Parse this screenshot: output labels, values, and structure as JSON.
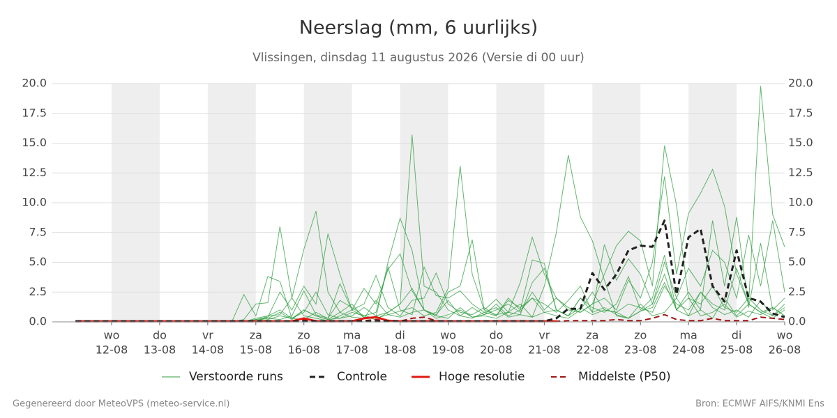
{
  "chart_data": {
    "type": "line",
    "title": "Neerslag (mm, 6 uurlijks)",
    "subtitle": "Vlissingen, dinsdag 11 augustus 2026 (Versie di 00 uur)",
    "x": [
      -18,
      -12,
      -6,
      0,
      6,
      12,
      18,
      24,
      30,
      36,
      42,
      48,
      54,
      60,
      66,
      72,
      78,
      84,
      90,
      96,
      102,
      108,
      114,
      120,
      126,
      132,
      138,
      144,
      150,
      156,
      162,
      168,
      174,
      180,
      186,
      192,
      198,
      204,
      210,
      216,
      222,
      228,
      234,
      240,
      246,
      252,
      258,
      264,
      270,
      276,
      282,
      288,
      294,
      300,
      306,
      312,
      318,
      324,
      330,
      336
    ],
    "xlim": [
      -29.6,
      336
    ],
    "xticks": [
      {
        "value": 0,
        "label": "12-08"
      },
      {
        "value": 24,
        "label": "13-08"
      },
      {
        "value": 48,
        "label": "14-08"
      },
      {
        "value": 72,
        "label": "15-08"
      },
      {
        "value": 96,
        "label": "16-08"
      },
      {
        "value": 120,
        "label": "17-08"
      },
      {
        "value": 144,
        "label": "18-08"
      },
      {
        "value": 168,
        "label": "19-08"
      },
      {
        "value": 192,
        "label": "20-08"
      },
      {
        "value": 216,
        "label": "21-08"
      },
      {
        "value": 240,
        "label": "22-08"
      },
      {
        "value": 264,
        "label": "23-08"
      },
      {
        "value": 288,
        "label": "24-08"
      },
      {
        "value": 312,
        "label": "25-08"
      },
      {
        "value": 336,
        "label": "26-08"
      }
    ],
    "weekdays": [
      "wo",
      "do",
      "vr",
      "za",
      "zo",
      "ma",
      "di",
      "wo",
      "do",
      "vr",
      "za",
      "zo",
      "ma",
      "di",
      "wo"
    ],
    "ylim": [
      0,
      20
    ],
    "yticks": [
      {
        "value": 0,
        "label": "0.0"
      },
      {
        "value": 2.5,
        "label": "2.5"
      },
      {
        "value": 5,
        "label": "5.0"
      },
      {
        "value": 7.5,
        "label": "7.5"
      },
      {
        "value": 10,
        "label": "10.0"
      },
      {
        "value": 12.5,
        "label": "12.5"
      },
      {
        "value": 15,
        "label": "15.0"
      },
      {
        "value": 17.5,
        "label": "17.5"
      },
      {
        "value": 20,
        "label": "20.0"
      }
    ],
    "grid": true,
    "ensemble": {
      "name": "Verstoorde runs",
      "color": "#2e9e3e",
      "members": [
        [
          0,
          0,
          0,
          0,
          0,
          0,
          0,
          0,
          0,
          0,
          0,
          0,
          0,
          0,
          2.3,
          0.5,
          3.8,
          3.4,
          0.3,
          1.0,
          0.5,
          0.2,
          0.8,
          1.5,
          0.3,
          0.4,
          5.0,
          8.7,
          6.0,
          1.0,
          0.5,
          0.3,
          1.2,
          0.4,
          0.6,
          1.5,
          0.5,
          1.0,
          2.0,
          0.8,
          0.5,
          0.3,
          1.0,
          2.5,
          1.0,
          0.8,
          0.3,
          1.5,
          0.5,
          0.8,
          2.0,
          0.5,
          1.0,
          0.3,
          2.0,
          0.5,
          1.5,
          0.8,
          0.3,
          1.0
        ],
        [
          0,
          0,
          0,
          0,
          0,
          0,
          0,
          0,
          0,
          0,
          0,
          0,
          0,
          0,
          0.2,
          1.5,
          1.6,
          8.0,
          2.0,
          0.5,
          0.3,
          0.1,
          0.5,
          1.0,
          0.4,
          0.2,
          0.8,
          1.5,
          15.7,
          3.0,
          2.5,
          1.0,
          0.5,
          0.3,
          0.8,
          1.2,
          0.4,
          0.6,
          3.3,
          4.5,
          1.0,
          0.5,
          2.0,
          0.8,
          1.2,
          0.6,
          0.3,
          0.9,
          1.5,
          4.0,
          1.0,
          0.5,
          2.5,
          1.2,
          0.6,
          1.0,
          0.4,
          1.8,
          0.5,
          1.2
        ],
        [
          0,
          0,
          0,
          0,
          0,
          0,
          0,
          0,
          0,
          0,
          0,
          0,
          0,
          0,
          0,
          0.3,
          0.5,
          0.6,
          2.0,
          6.1,
          9.3,
          2.5,
          0.8,
          0.4,
          0.3,
          1.8,
          0.6,
          0.9,
          1.2,
          0.5,
          0.8,
          2.8,
          13.1,
          4.0,
          1.0,
          0.6,
          0.8,
          1.5,
          0.4,
          3.0,
          7.5,
          14.0,
          8.8,
          6.8,
          3.5,
          0.5,
          0.3,
          0.9,
          1.2,
          3.3,
          1.0,
          2.0,
          0.5,
          0.8,
          1.5,
          0.4,
          0.9,
          0.6,
          1.2,
          0.5
        ],
        [
          0,
          0,
          0,
          0,
          0,
          0,
          0,
          0,
          0,
          0,
          0,
          0,
          0,
          0,
          0,
          0.2,
          0.4,
          2.5,
          1.0,
          3.0,
          1.5,
          7.4,
          4.0,
          1.0,
          2.8,
          1.5,
          4.4,
          5.7,
          2.6,
          1.0,
          0.5,
          2.5,
          3.0,
          6.9,
          1.0,
          1.9,
          0.8,
          3.3,
          7.1,
          4.0,
          2.0,
          1.0,
          0.8,
          1.5,
          4.0,
          6.4,
          7.6,
          6.8,
          3.0,
          14.8,
          9.8,
          2.0,
          1.5,
          3.0,
          1.2,
          0.8,
          2.0,
          1.0,
          0.5,
          1.5
        ],
        [
          0,
          0,
          0,
          0,
          0,
          0,
          0,
          0,
          0,
          0,
          0,
          0,
          0,
          0,
          0,
          0,
          0.5,
          1.0,
          0.3,
          0.8,
          2.5,
          0.6,
          0.3,
          0.5,
          1.2,
          0.5,
          0.8,
          1.5,
          2.8,
          1.0,
          0.6,
          1.8,
          0.5,
          1.2,
          0.6,
          1.0,
          1.5,
          0.8,
          2.5,
          1.0,
          2.0,
          1.2,
          0.8,
          1.5,
          2.0,
          1.0,
          3.5,
          2.0,
          5.0,
          12.2,
          4.0,
          9.1,
          10.8,
          12.8,
          9.7,
          4.0,
          1.5,
          19.8,
          9.0,
          6.3
        ],
        [
          0,
          0,
          0,
          0,
          0,
          0,
          0,
          0,
          0,
          0,
          0,
          0,
          0,
          0,
          0,
          0.1,
          0.3,
          0.2,
          0.5,
          2.6,
          0.6,
          0.3,
          3.2,
          1.0,
          1.5,
          3.9,
          1.2,
          0.5,
          1.8,
          2.0,
          4.1,
          1.5,
          0.8,
          0.6,
          1.2,
          0.5,
          2.0,
          1.0,
          5.2,
          4.9,
          1.0,
          0.5,
          2.0,
          1.2,
          0.8,
          1.5,
          3.8,
          1.0,
          2.0,
          5.6,
          1.0,
          2.5,
          1.0,
          8.5,
          3.0,
          8.8,
          1.2,
          6.6,
          1.0,
          2.0
        ],
        [
          0,
          0,
          0,
          0,
          0,
          0,
          0,
          0,
          0,
          0,
          0,
          0,
          0,
          0,
          0,
          0,
          0.2,
          0.5,
          0.3,
          0.2,
          0.8,
          0.3,
          1.8,
          1.2,
          0.5,
          0.8,
          4.6,
          1.0,
          0.6,
          4.6,
          2.2,
          2.0,
          2.6,
          1.5,
          0.8,
          0.5,
          1.8,
          1.2,
          2.0,
          1.5,
          0.8,
          1.8,
          3.0,
          0.8,
          6.5,
          3.5,
          5.3,
          4.0,
          1.5,
          5.0,
          2.0,
          4.5,
          3.0,
          6.0,
          5.0,
          2.0,
          7.3,
          3.0,
          8.5,
          2.5
        ],
        [
          0,
          0,
          0,
          0,
          0,
          0,
          0,
          0,
          0,
          0,
          0,
          0,
          0,
          0,
          0,
          0.2,
          0.3,
          0.8,
          0.2,
          1.0,
          0.5,
          0.2,
          0.3,
          0.8,
          0.5,
          0.3,
          0.6,
          0.4,
          0.8,
          1.0,
          0.3,
          0.6,
          1.0,
          0.4,
          0.5,
          0.3,
          0.8,
          0.6,
          0.4,
          0.8,
          1.0,
          0.5,
          1.2,
          0.6,
          1.0,
          0.8,
          1.5,
          1.2,
          0.8,
          3.0,
          1.5,
          1.0,
          2.5,
          1.5,
          1.0,
          4.5,
          1.5,
          0.8,
          1.2,
          0.5
        ]
      ]
    },
    "series": [
      {
        "name": "Controle",
        "color": "#222222",
        "dash": true,
        "width": 3,
        "values": [
          0.05,
          0.05,
          0.05,
          0.05,
          0.05,
          0.05,
          0.05,
          0.05,
          0.05,
          0.05,
          0.05,
          0.05,
          0.05,
          0.05,
          0.05,
          0.05,
          0.05,
          0.05,
          0.05,
          0.05,
          0.05,
          0.05,
          0.05,
          0.05,
          0.05,
          0.05,
          0.05,
          0.05,
          0.05,
          0.05,
          0.05,
          0.05,
          0.05,
          0.05,
          0.05,
          0.05,
          0.05,
          0.05,
          0.05,
          0.05,
          0.3,
          1.1,
          1.1,
          4.1,
          2.7,
          4.0,
          6.0,
          6.4,
          6.3,
          8.5,
          2.3,
          7.1,
          7.8,
          3.0,
          1.7,
          6.0,
          2.0,
          1.7,
          0.7,
          0.4
        ]
      },
      {
        "name": "Hoge resolutie",
        "color": "#e01a12",
        "dash": false,
        "width": 3,
        "values": [
          0.05,
          0.05,
          0.05,
          0.05,
          0.05,
          0.05,
          0.05,
          0.05,
          0.05,
          0.05,
          0.05,
          0.05,
          0.05,
          0.05,
          0.05,
          0.05,
          0.05,
          0.05,
          0.05,
          0.3,
          0.05,
          0.05,
          0.05,
          0.05,
          0.3,
          0.4,
          0.1,
          0.05,
          0.05,
          0.05,
          0.05,
          0.05,
          0.05,
          0.05,
          0.05,
          0.05,
          0.05,
          0.05,
          0.05,
          0.05,
          0.05,
          null,
          null,
          null,
          null,
          null,
          null,
          null,
          null,
          null,
          null,
          null,
          null,
          null,
          null,
          null,
          null,
          null,
          null,
          null
        ]
      },
      {
        "name": "Middelste (P50)",
        "color": "#a01414",
        "dash": true,
        "width": 2,
        "values": [
          0.05,
          0.05,
          0.05,
          0.05,
          0.05,
          0.05,
          0.05,
          0.05,
          0.05,
          0.05,
          0.05,
          0.05,
          0.05,
          0.05,
          0.05,
          0.05,
          0.05,
          0.05,
          0.05,
          0.2,
          0.05,
          0.05,
          0.05,
          0.05,
          0.1,
          0.2,
          0.05,
          0.05,
          0.3,
          0.4,
          0.1,
          0.05,
          0.05,
          0.05,
          0.05,
          0.05,
          0.05,
          0.05,
          0.05,
          0.05,
          0.05,
          0.1,
          0.1,
          0.1,
          0.1,
          0.2,
          0.1,
          0.1,
          0.3,
          0.6,
          0.2,
          0.1,
          0.1,
          0.3,
          0.1,
          0.1,
          0.1,
          0.4,
          0.3,
          0.2
        ]
      }
    ],
    "footer_left": "Gegenereerd door MeteoVPS (meteo-service.nl)",
    "footer_right": "Bron: ECMWF AIFS/KNMI Ens"
  }
}
